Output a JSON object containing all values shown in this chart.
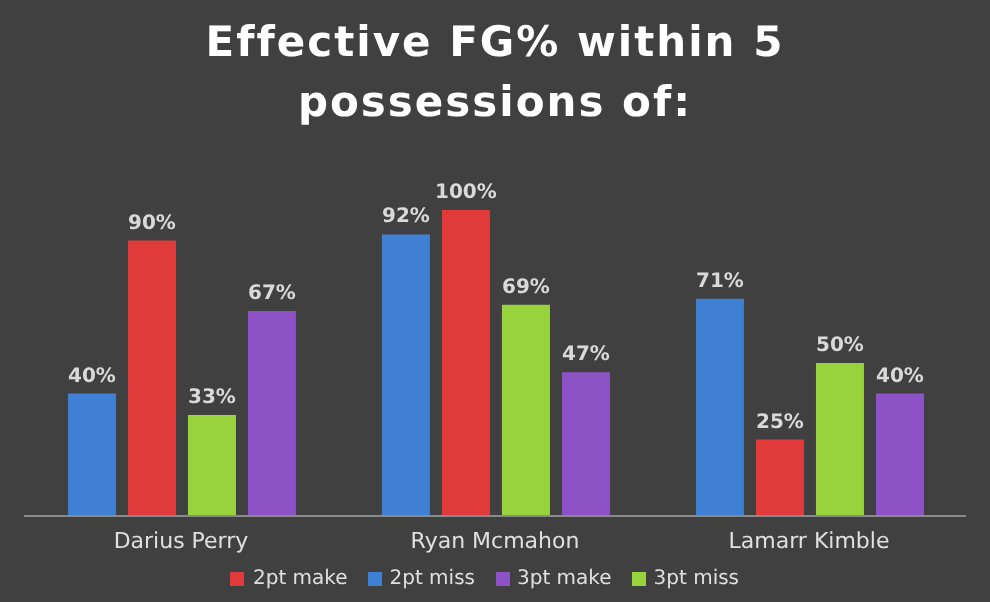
{
  "chart_data": {
    "type": "bar",
    "title": "Effective FG% within 5 possessions of:",
    "categories": [
      "Darius Perry",
      "Ryan Mcmahon",
      "Lamarr Kimble"
    ],
    "series": [
      {
        "name": "2pt miss",
        "color": "#3f7fd4",
        "values": [
          40,
          92,
          71
        ],
        "value_labels": [
          "40%",
          "92%",
          "71%"
        ]
      },
      {
        "name": "2pt make",
        "color": "#e03a3a",
        "values": [
          90,
          100,
          25
        ],
        "value_labels": [
          "90%",
          "100%",
          "25%"
        ]
      },
      {
        "name": "3pt miss",
        "color": "#98d23c",
        "values": [
          33,
          69,
          50
        ],
        "value_labels": [
          "33%",
          "69%",
          "50%"
        ]
      },
      {
        "name": "3pt make",
        "color": "#8c52c6",
        "values": [
          67,
          47,
          40
        ],
        "value_labels": [
          "67%",
          "47%",
          "40%"
        ]
      }
    ],
    "legend": "bottom",
    "grid": false
  }
}
